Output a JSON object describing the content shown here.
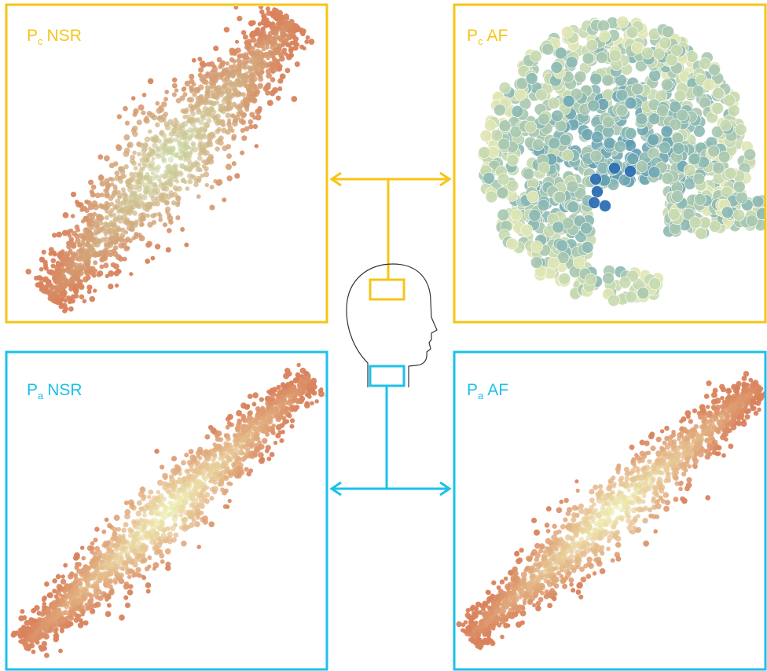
{
  "panels": [
    {
      "symbol": "P",
      "subscript": "c",
      "condition": "NSR"
    },
    {
      "symbol": "P",
      "subscript": "c",
      "condition": "AF"
    },
    {
      "symbol": "P",
      "subscript": "a",
      "condition": "NSR"
    },
    {
      "symbol": "P",
      "subscript": "a",
      "condition": "AF"
    }
  ]
}
